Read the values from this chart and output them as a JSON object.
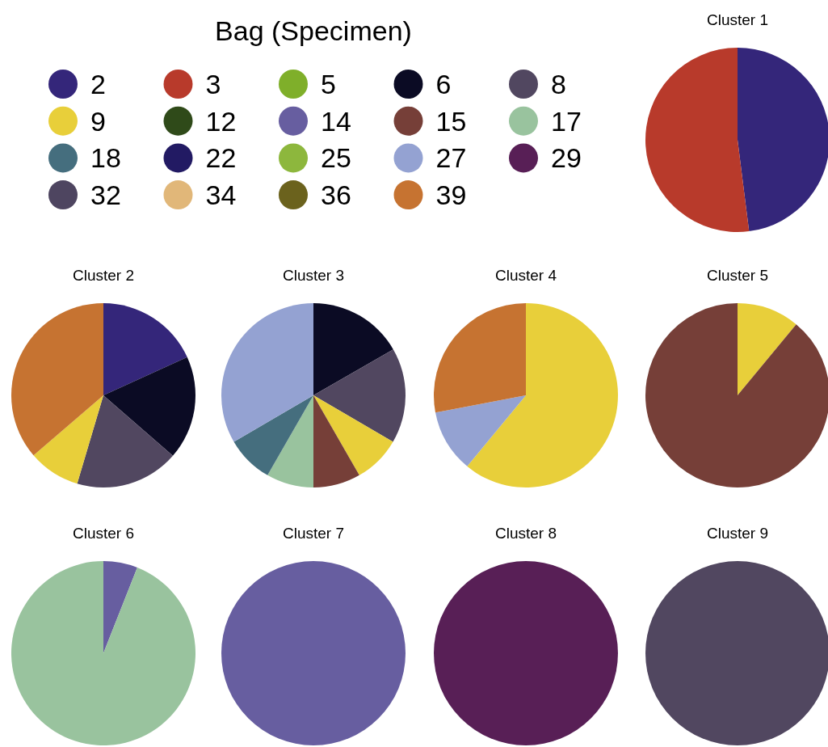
{
  "chart_data": {
    "type": "pie",
    "legend_title": "Bag (Specimen)",
    "legend": "top left",
    "categories": [
      "2",
      "3",
      "5",
      "6",
      "8",
      "9",
      "12",
      "14",
      "15",
      "17",
      "18",
      "22",
      "25",
      "27",
      "29",
      "32",
      "34",
      "36",
      "39"
    ],
    "colors": [
      "#34267a",
      "#b83a2b",
      "#7faf2a",
      "#0b0b24",
      "#514760",
      "#e8cf3a",
      "#2f4a19",
      "#675ea0",
      "#763f38",
      "#99c39e",
      "#456e7e",
      "#221a63",
      "#8db73d",
      "#94a2d2",
      "#581f56",
      "#4e4560",
      "#e1b779",
      "#6b621d",
      "#c67331"
    ],
    "series": [
      {
        "name": "Cluster 1",
        "values": [
          48,
          52,
          0,
          0,
          0,
          0,
          0,
          0,
          0,
          0,
          0,
          0,
          0,
          0,
          0,
          0,
          0,
          0,
          0
        ]
      },
      {
        "name": "Cluster 2",
        "values": [
          18.2,
          0,
          0,
          18.2,
          18.2,
          9.1,
          0,
          0,
          0,
          0,
          0,
          0,
          0,
          0,
          0,
          0,
          0,
          0,
          36.3
        ]
      },
      {
        "name": "Cluster 3",
        "values": [
          0,
          0,
          0,
          16.7,
          16.7,
          8.3,
          0,
          0,
          8.3,
          8.3,
          8.3,
          0,
          0,
          33.4,
          0,
          0,
          0,
          0,
          0
        ]
      },
      {
        "name": "Cluster 4",
        "values": [
          0,
          0,
          0,
          0,
          0,
          61,
          0,
          0,
          0,
          0,
          0,
          0,
          0,
          11,
          0,
          0,
          0,
          0,
          28
        ]
      },
      {
        "name": "Cluster 5",
        "values": [
          0,
          0,
          0,
          0,
          0,
          11,
          0,
          0,
          89,
          0,
          0,
          0,
          0,
          0,
          0,
          0,
          0,
          0,
          0
        ]
      },
      {
        "name": "Cluster 6",
        "values": [
          0,
          0,
          0,
          0,
          0,
          0,
          0,
          6,
          0,
          94,
          0,
          0,
          0,
          0,
          0,
          0,
          0,
          0,
          0
        ]
      },
      {
        "name": "Cluster 7",
        "values": [
          0,
          0,
          0,
          0,
          0,
          0,
          0,
          100,
          0,
          0,
          0,
          0,
          0,
          0,
          0,
          0,
          0,
          0,
          0
        ]
      },
      {
        "name": "Cluster 8",
        "values": [
          0,
          0,
          0,
          0,
          0,
          0,
          0,
          0,
          0,
          0,
          0,
          0,
          0,
          0,
          100,
          0,
          0,
          0,
          0
        ]
      },
      {
        "name": "Cluster 9",
        "values": [
          0,
          0,
          0,
          0,
          100,
          0,
          0,
          0,
          0,
          0,
          0,
          0,
          0,
          0,
          0,
          0,
          0,
          0,
          0
        ]
      }
    ]
  }
}
